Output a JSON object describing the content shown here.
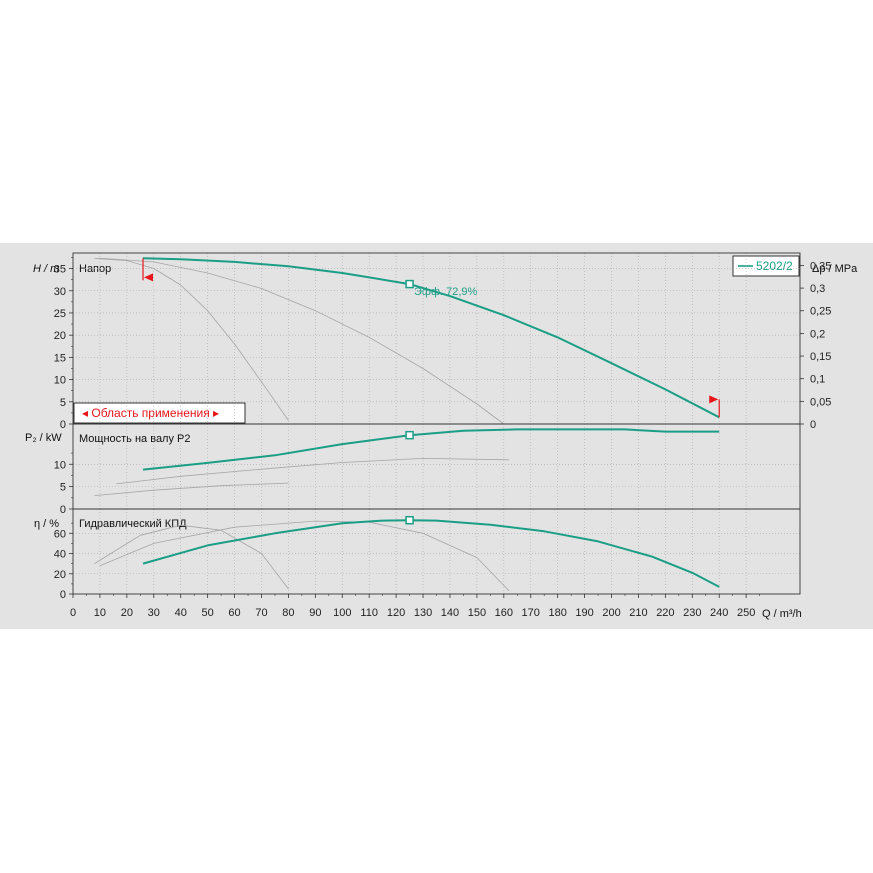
{
  "chart_data": [
    {
      "type": "line",
      "panel": "head",
      "title": "Напор",
      "ylabel_left": "H / m",
      "ylabel_right": "Δp / MPa",
      "ylim": [
        0,
        38.5
      ],
      "yticks": [
        "0",
        "5",
        "10",
        "15",
        "20",
        "25",
        "30",
        "35"
      ],
      "yticks_right": [
        "0",
        "0,05",
        "0,1",
        "0,15",
        "0,2",
        "0,25",
        "0,3",
        "0,35"
      ],
      "legend": "5202/2",
      "legend_placement": "top-right",
      "annotation": "Эфф. 72,9%",
      "range_label": "Область применения",
      "range_min": 26,
      "range_max": 240,
      "duty_point": {
        "x": 125,
        "y": 31.5
      },
      "series": [
        {
          "name": "5202/2",
          "x": [
            26,
            40,
            60,
            80,
            100,
            110,
            125,
            140,
            160,
            180,
            200,
            220,
            240
          ],
          "y": [
            37.3,
            37.1,
            36.5,
            35.5,
            34,
            33,
            31.5,
            28.8,
            24.5,
            19.5,
            13.7,
            7.8,
            1.5
          ]
        },
        {
          "x": [
            8,
            20,
            30,
            40,
            50,
            60,
            70,
            80
          ],
          "y": [
            37.3,
            36.8,
            35,
            31.3,
            25.5,
            18,
            9.5,
            0.8
          ]
        },
        {
          "x": [
            10,
            30,
            50,
            70,
            90,
            110,
            130,
            150,
            160
          ],
          "y": [
            37.3,
            36.5,
            34,
            30.5,
            25.5,
            19.5,
            12.5,
            4.5,
            0
          ]
        }
      ]
    },
    {
      "type": "line",
      "panel": "power",
      "title": "Мощность на валу P2",
      "ylabel_left": "P₂ / kW",
      "ylim": [
        0,
        19
      ],
      "yticks": [
        "0",
        "5",
        "10"
      ],
      "duty_point": {
        "x": 125,
        "y": 16.5
      },
      "series": [
        {
          "name": "5202/2",
          "x": [
            26,
            50,
            75,
            100,
            125,
            145,
            165,
            185,
            205,
            220,
            240
          ],
          "y": [
            8.8,
            10.3,
            12,
            14.5,
            16.5,
            17.5,
            17.8,
            17.8,
            17.8,
            17.3,
            17.3
          ]
        },
        {
          "x": [
            16,
            40,
            70,
            100,
            130,
            162
          ],
          "y": [
            5.6,
            7.3,
            8.9,
            10.4,
            11.3,
            11.0
          ]
        },
        {
          "x": [
            8,
            30,
            55,
            80
          ],
          "y": [
            3,
            4.2,
            5.2,
            5.8
          ]
        }
      ]
    },
    {
      "type": "line",
      "panel": "efficiency",
      "title": "Гидравлический КПД",
      "ylabel_left": "η / %",
      "ylim": [
        0,
        84
      ],
      "yticks": [
        "0",
        "20",
        "40",
        "60"
      ],
      "duty_point": {
        "x": 125,
        "y": 72.9
      },
      "series": [
        {
          "name": "5202/2",
          "x": [
            26,
            50,
            75,
            100,
            115,
            125,
            135,
            155,
            175,
            195,
            215,
            230,
            240
          ],
          "y": [
            30,
            48,
            60,
            70,
            72.5,
            72.9,
            72.5,
            68.5,
            62,
            52,
            37,
            21,
            7
          ]
        },
        {
          "x": [
            10,
            30,
            60,
            90,
            110,
            130,
            150,
            162
          ],
          "y": [
            28,
            50,
            66,
            72,
            71,
            60,
            36,
            3
          ]
        },
        {
          "x": [
            8,
            25,
            40,
            55,
            70,
            80
          ],
          "y": [
            30,
            58,
            68,
            63,
            40,
            5
          ]
        }
      ]
    }
  ],
  "x_axis": {
    "label": "Q / m³/h",
    "ticks": [
      "0",
      "10",
      "20",
      "30",
      "40",
      "50",
      "60",
      "70",
      "80",
      "90",
      "100",
      "110",
      "120",
      "130",
      "140",
      "150",
      "160",
      "170",
      "180",
      "190",
      "200",
      "210",
      "220",
      "230",
      "240",
      "250"
    ],
    "xlim": [
      0,
      270
    ]
  },
  "colors": {
    "primary": "#1a9e86",
    "secondary": "#a5a5a5",
    "marker": "#e8161b",
    "grid": "#adadad"
  }
}
